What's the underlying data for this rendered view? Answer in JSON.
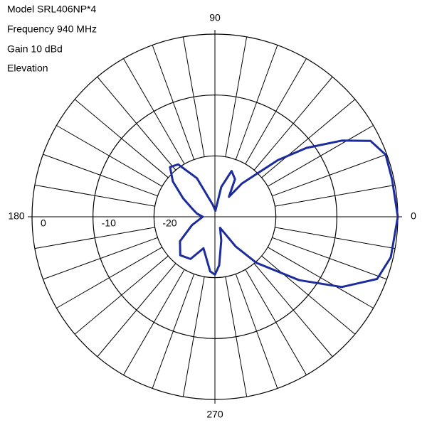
{
  "chart_data": {
    "type": "polar",
    "info": [
      "Model  SRL406NP*4",
      "Frequency  940 MHz",
      "Gain 10 dBd",
      "Elevation"
    ],
    "theta": [
      0,
      12,
      20,
      26,
      31,
      37,
      42,
      46,
      51,
      55,
      62,
      70,
      78,
      85,
      100,
      115,
      125,
      132,
      140,
      150,
      160,
      170,
      180,
      200,
      215,
      228,
      240,
      250,
      265,
      270,
      275,
      285,
      295,
      300,
      305,
      312,
      323,
      331,
      339,
      347,
      360
    ],
    "values": [
      0,
      -0.3,
      -0.2,
      -1.6,
      -5.7,
      -11.2,
      -16.1,
      -20.3,
      -23,
      -26,
      -23,
      -22,
      -25,
      -29,
      -28,
      -23,
      -19.5,
      -19,
      -21,
      -24,
      -26,
      -27,
      -28,
      -26,
      -23,
      -21.5,
      -22,
      -24.5,
      -21,
      -20.5,
      -22,
      -26,
      -28,
      -27,
      -24,
      -19.8,
      -12.7,
      -6.2,
      -1.5,
      -0.4,
      0
    ],
    "color": "#1c2c9c",
    "rlim": [
      -30,
      0
    ],
    "rticks": [
      0,
      -10,
      -20
    ],
    "thetaticks": [
      0,
      90,
      180,
      270
    ]
  }
}
